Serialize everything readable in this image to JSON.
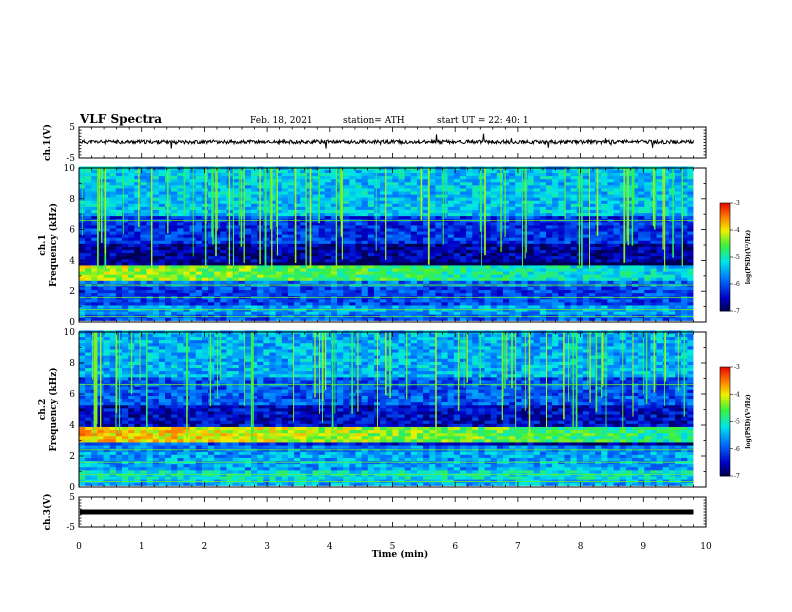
{
  "header": {
    "title": "VLF Spectra",
    "date": "Feb. 18, 2021",
    "station": "station= ATH",
    "start": "start  UT =   22: 40: 1"
  },
  "chart_data": {
    "type": "heatmap",
    "x_axis": {
      "label": "Time (min)",
      "range": [
        0,
        10
      ],
      "ticks": [
        "0",
        "1",
        "2",
        "3",
        "4",
        "5",
        "6",
        "7",
        "8",
        "9",
        "10"
      ],
      "data_extent_min": 9.8
    },
    "panels": [
      {
        "id": "ch1-voltage",
        "type": "line",
        "ylabel": "ch.1(V)",
        "ylim": [
          -5,
          5
        ],
        "ticks": [
          "5",
          "-5"
        ],
        "baseline": 0.2,
        "trace_color": "#000000"
      },
      {
        "id": "ch1-spectrogram",
        "type": "heatmap",
        "ylabel_line1": "ch.1",
        "ylabel_line2": "Frequency (kHz)",
        "ylim": [
          0,
          10
        ],
        "ticks": [
          "0",
          "2",
          "4",
          "6",
          "8",
          "10"
        ],
        "colorbar": {
          "label": "log(PSD)(V²/Hz)",
          "range": [
            -7,
            -3
          ],
          "ticks": [
            "-3",
            "-4",
            "-5",
            "-6",
            "-7"
          ]
        },
        "bands": [
          {
            "from": 0.0,
            "to": 0.5,
            "level": -6.0
          },
          {
            "from": 0.5,
            "to": 1.0,
            "level": -5.6
          },
          {
            "from": 1.0,
            "to": 2.2,
            "level": -6.1
          },
          {
            "from": 2.2,
            "to": 2.6,
            "level": -5.9
          },
          {
            "from": 2.6,
            "to": 3.6,
            "level": -4.2
          },
          {
            "from": 3.6,
            "to": 5.0,
            "level": -6.7
          },
          {
            "from": 5.0,
            "to": 6.8,
            "level": -6.2
          },
          {
            "from": 6.8,
            "to": 10.0,
            "level": -5.4
          }
        ]
      },
      {
        "id": "ch2-spectrogram",
        "type": "heatmap",
        "ylabel_line1": "ch.2",
        "ylabel_line2": "Frequency (kHz)",
        "ylim": [
          0,
          10
        ],
        "ticks": [
          "0",
          "2",
          "4",
          "6",
          "8",
          "10"
        ],
        "colorbar": {
          "label": "log(PSD)(V²/Hz)",
          "range": [
            -7,
            -3
          ],
          "ticks": [
            "-3",
            "-4",
            "-5",
            "-6",
            "-7"
          ]
        },
        "bands": [
          {
            "from": 0.0,
            "to": 0.5,
            "level": -5.5
          },
          {
            "from": 0.5,
            "to": 1.0,
            "level": -5.2
          },
          {
            "from": 1.0,
            "to": 2.3,
            "level": -5.6
          },
          {
            "from": 2.3,
            "to": 2.8,
            "level": -5.8
          },
          {
            "from": 2.8,
            "to": 3.8,
            "level": -3.8
          },
          {
            "from": 3.8,
            "to": 5.2,
            "level": -6.5
          },
          {
            "from": 5.2,
            "to": 7.0,
            "level": -6.0
          },
          {
            "from": 7.0,
            "to": 10.0,
            "level": -5.5
          }
        ]
      },
      {
        "id": "ch3-voltage",
        "type": "line",
        "ylabel": "ch.3(V)",
        "ylim": [
          -5,
          5
        ],
        "ticks": [
          "5",
          "-5"
        ],
        "baseline": 0.0,
        "trace_color": "#000000"
      }
    ]
  }
}
